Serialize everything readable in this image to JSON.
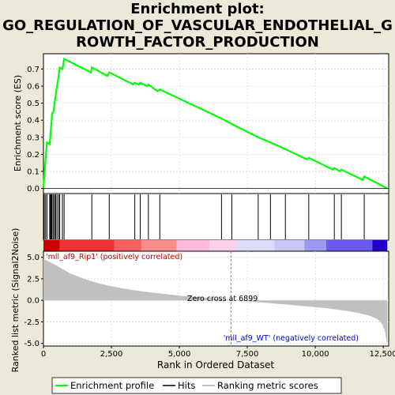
{
  "title_lines": [
    "Enrichment plot:",
    "GO_REGULATION_OF_VASCULAR_ENDOTHELIAL_G",
    "ROWTH_FACTOR_PRODUCTION"
  ],
  "colors": {
    "background": "#ece9d8",
    "es_line": "#00ff00",
    "hits": "#000000",
    "metric_fill": "#c0c0c0",
    "positive_text": "#cc0000",
    "negative_text": "#0000cc",
    "grid": "#d8d8d8"
  },
  "chart_data": [
    {
      "type": "line",
      "panel": "enrichment",
      "ylabel": "Enrichment score (ES)",
      "xlim": [
        0,
        12700
      ],
      "ylim": [
        -0.03,
        0.79
      ],
      "yticks": [
        0.0,
        0.1,
        0.2,
        0.3,
        0.4,
        0.5,
        0.6,
        0.7
      ],
      "ytick_labels": [
        "0.0",
        "0.1",
        "0.2",
        "0.3",
        "0.4",
        "0.5",
        "0.6",
        "0.7"
      ],
      "grid": true,
      "series": [
        {
          "points": [
            [
              0,
              0.0
            ],
            [
              30,
              0.07
            ],
            [
              60,
              0.14
            ],
            [
              90,
              0.2
            ],
            [
              130,
              0.27
            ],
            [
              230,
              0.26
            ],
            [
              260,
              0.32
            ],
            [
              290,
              0.38
            ],
            [
              320,
              0.44
            ],
            [
              370,
              0.45
            ],
            [
              410,
              0.5
            ],
            [
              450,
              0.55
            ],
            [
              500,
              0.6
            ],
            [
              560,
              0.66
            ],
            [
              600,
              0.71
            ],
            [
              700,
              0.7
            ],
            [
              760,
              0.76
            ],
            [
              1750,
              0.68
            ],
            [
              1780,
              0.71
            ],
            [
              2350,
              0.66
            ],
            [
              2420,
              0.68
            ],
            [
              3300,
              0.61
            ],
            [
              3360,
              0.62
            ],
            [
              3500,
              0.61
            ],
            [
              3560,
              0.62
            ],
            [
              3800,
              0.6
            ],
            [
              3860,
              0.61
            ],
            [
              4200,
              0.57
            ],
            [
              4280,
              0.58
            ],
            [
              6550,
              0.41
            ],
            [
              6900,
              0.38
            ],
            [
              7900,
              0.3
            ],
            [
              8350,
              0.27
            ],
            [
              8900,
              0.23
            ],
            [
              9700,
              0.17
            ],
            [
              9760,
              0.18
            ],
            [
              10650,
              0.11
            ],
            [
              10700,
              0.12
            ],
            [
              10900,
              0.1
            ],
            [
              10960,
              0.11
            ],
            [
              11750,
              0.05
            ],
            [
              11800,
              0.07
            ],
            [
              12650,
              0.0
            ]
          ]
        }
      ]
    },
    {
      "type": "scatter",
      "panel": "hits",
      "x": [
        30,
        80,
        130,
        230,
        260,
        290,
        320,
        370,
        410,
        450,
        500,
        560,
        600,
        700,
        760,
        1780,
        2420,
        3360,
        3560,
        3860,
        4280,
        6550,
        6930,
        7900,
        8350,
        8900,
        9760,
        10700,
        10960,
        11800
      ]
    },
    {
      "type": "area",
      "panel": "ranked_metric",
      "xlabel": "Rank in Ordered Dataset",
      "ylabel": "Ranked list metric (Signal2Noise)",
      "xlim": [
        0,
        12700
      ],
      "ylim": [
        -5.3,
        5.7
      ],
      "xticks": [
        0,
        2500,
        5000,
        7500,
        10000,
        12500
      ],
      "xtick_labels": [
        "0",
        "2,500",
        "5,000",
        "7,500",
        "10,000",
        "12,500"
      ],
      "yticks": [
        -5.0,
        -2.5,
        0.0,
        2.5,
        5.0
      ],
      "ytick_labels": [
        "-5.0",
        "-2.5",
        "0.0",
        "2.5",
        "5.0"
      ],
      "grid": true,
      "series": [
        {
          "points": [
            [
              0,
              4.8
            ],
            [
              200,
              4.5
            ],
            [
              500,
              4.0
            ],
            [
              1000,
              3.1
            ],
            [
              1500,
              2.5
            ],
            [
              2000,
              2.0
            ],
            [
              2500,
              1.65
            ],
            [
              3000,
              1.35
            ],
            [
              3500,
              1.1
            ],
            [
              4000,
              0.9
            ],
            [
              4500,
              0.72
            ],
            [
              5000,
              0.55
            ],
            [
              5500,
              0.42
            ],
            [
              6000,
              0.3
            ],
            [
              6500,
              0.15
            ],
            [
              6899,
              0.0
            ],
            [
              7500,
              -0.12
            ],
            [
              8000,
              -0.25
            ],
            [
              8500,
              -0.38
            ],
            [
              9000,
              -0.5
            ],
            [
              9500,
              -0.65
            ],
            [
              10000,
              -0.78
            ],
            [
              10500,
              -0.95
            ],
            [
              11000,
              -1.15
            ],
            [
              11500,
              -1.4
            ],
            [
              12000,
              -1.8
            ],
            [
              12300,
              -2.2
            ],
            [
              12450,
              -2.7
            ],
            [
              12550,
              -3.4
            ],
            [
              12630,
              -4.9
            ],
            [
              12650,
              -5.0
            ]
          ]
        }
      ],
      "zero_cross": 6899,
      "annotations": {
        "positive": "'mll_af9_Rip1' (positively correlated)",
        "negative": "'mll_af9_WT' (negatively correlated)",
        "zero_cross": "Zero cross at 6899"
      }
    }
  ],
  "colorbar": {
    "segments": [
      {
        "from": 0,
        "to": 600,
        "color": "#cc0000"
      },
      {
        "from": 600,
        "to": 2600,
        "color": "#ee3333"
      },
      {
        "from": 2600,
        "to": 3600,
        "color": "#f76060"
      },
      {
        "from": 3600,
        "to": 4900,
        "color": "#fa8c8c"
      },
      {
        "from": 4900,
        "to": 6100,
        "color": "#fcb9dc"
      },
      {
        "from": 6100,
        "to": 7100,
        "color": "#fad0ec"
      },
      {
        "from": 7100,
        "to": 8500,
        "color": "#dcdcf8"
      },
      {
        "from": 8500,
        "to": 9600,
        "color": "#c8c8f6"
      },
      {
        "from": 9600,
        "to": 10400,
        "color": "#9a9af2"
      },
      {
        "from": 10400,
        "to": 12100,
        "color": "#6a5af0"
      },
      {
        "from": 12100,
        "to": 12650,
        "color": "#2200cc"
      }
    ]
  },
  "legend": {
    "items": [
      {
        "label": "Enrichment profile",
        "color": "#00ff00",
        "style": "line"
      },
      {
        "label": "Hits",
        "color": "#000000",
        "style": "line"
      },
      {
        "label": "Ranking metric scores",
        "color": "#c0c0c0",
        "style": "line"
      }
    ]
  }
}
